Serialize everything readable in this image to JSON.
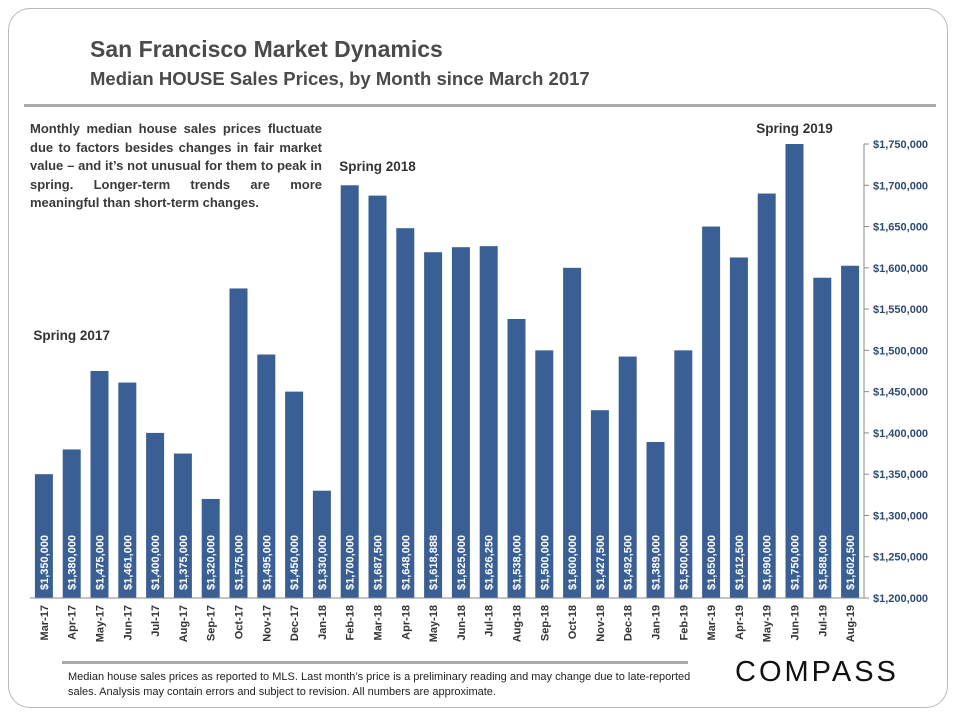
{
  "header": {
    "title": "San Francisco Market Dynamics",
    "subtitle": "Median HOUSE Sales Prices, by Month since March 2017"
  },
  "note": "Monthly median house sales prices fluctuate due to factors besides changes in fair market value – and it’s not unusual for them to peak in spring. Longer-term trends are more meaningful than short-term changes.",
  "footnote": "Median house sales prices as reported to MLS. Last month’s price is a preliminary reading and may change due to late-reported sales. Analysis may contain errors and subject to revision. All numbers are approximate.",
  "logo": "COMPASS",
  "colors": {
    "bar": "#3a5f94",
    "bar_label": "#ffffff",
    "text": "#333333",
    "axis_tick_text": "#2e4a72"
  },
  "chart_data": {
    "type": "bar",
    "categories": [
      "Mar-17",
      "Apr-17",
      "May-17",
      "Jun-17",
      "Jul-17",
      "Aug-17",
      "Sep-17",
      "Oct-17",
      "Nov-17",
      "Dec-17",
      "Jan-18",
      "Feb-18",
      "Mar-18",
      "Apr-18",
      "May-18",
      "Jun-18",
      "Jul-18",
      "Aug-18",
      "Sep-18",
      "Oct-18",
      "Nov-18",
      "Dec-18",
      "Jan-19",
      "Feb-19",
      "Mar-19",
      "Apr-19",
      "May-19",
      "Jun-19",
      "Jul-19",
      "Aug-19"
    ],
    "values": [
      1350000,
      1380000,
      1475000,
      1461000,
      1400000,
      1375000,
      1320000,
      1575000,
      1495000,
      1450000,
      1330000,
      1700000,
      1687500,
      1648000,
      1618888,
      1625000,
      1626250,
      1538000,
      1500000,
      1600000,
      1427500,
      1492500,
      1389000,
      1500000,
      1650000,
      1612500,
      1690000,
      1750000,
      1588000,
      1602500
    ],
    "data_labels": [
      "$1,350,000",
      "$1,380,000",
      "$1,475,000",
      "$1,461,000",
      "$1,400,000",
      "$1,375,000",
      "$1,320,000",
      "$1,575,000",
      "$1,495,000",
      "$1,450,000",
      "$1,330,000",
      "$1,700,000",
      "$1,687,500",
      "$1,648,000",
      "$1,618,888",
      "$1,625,000",
      "$1,626,250",
      "$1,538,000",
      "$1,500,000",
      "$1,600,000",
      "$1,427,500",
      "$1,492,500",
      "$1,389,000",
      "$1,500,000",
      "$1,650,000",
      "$1,612,500",
      "$1,690,000",
      "$1,750,000",
      "$1,588,000",
      "$1,602,500"
    ],
    "ylim": [
      1200000,
      1750000
    ],
    "y_ticks": [
      1200000,
      1250000,
      1300000,
      1350000,
      1400000,
      1450000,
      1500000,
      1550000,
      1600000,
      1650000,
      1700000,
      1750000
    ],
    "y_tick_labels": [
      "$1,200,000",
      "$1,250,000",
      "$1,300,000",
      "$1,350,000",
      "$1,400,000",
      "$1,450,000",
      "$1,500,000",
      "$1,550,000",
      "$1,600,000",
      "$1,650,000",
      "$1,700,000",
      "$1,750,000"
    ],
    "y_axis_side": "right",
    "grid": false,
    "legend": "none",
    "annotations": [
      {
        "text": "Spring 2017",
        "category": "Apr-17"
      },
      {
        "text": "Spring 2018",
        "category": "Mar-18"
      },
      {
        "text": "Spring 2019",
        "category": "Jun-19"
      }
    ]
  }
}
